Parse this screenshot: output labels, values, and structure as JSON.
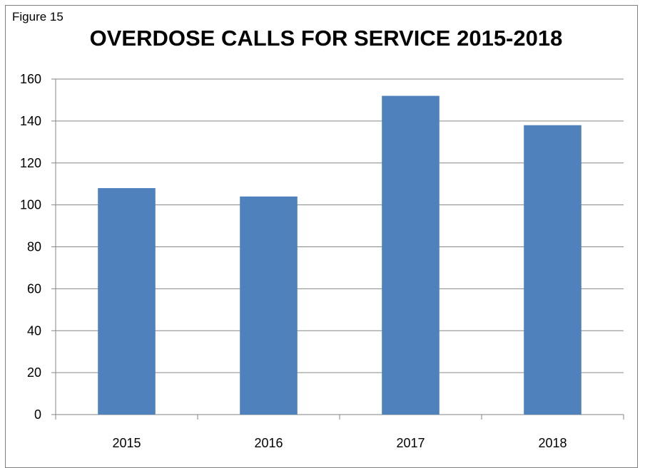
{
  "figure_label": "Figure 15",
  "chart_data": {
    "type": "bar",
    "title": "OVERDOSE CALLS FOR SERVICE 2015-2018",
    "categories": [
      "2015",
      "2016",
      "2017",
      "2018"
    ],
    "values": [
      108,
      104,
      152,
      138
    ],
    "xlabel": "",
    "ylabel": "",
    "ylim": [
      0,
      160
    ],
    "yticks": [
      0,
      20,
      40,
      60,
      80,
      100,
      120,
      140,
      160
    ],
    "grid": true,
    "legend": "none",
    "bar_color": "#4f81bd",
    "grid_color": "#868686"
  }
}
